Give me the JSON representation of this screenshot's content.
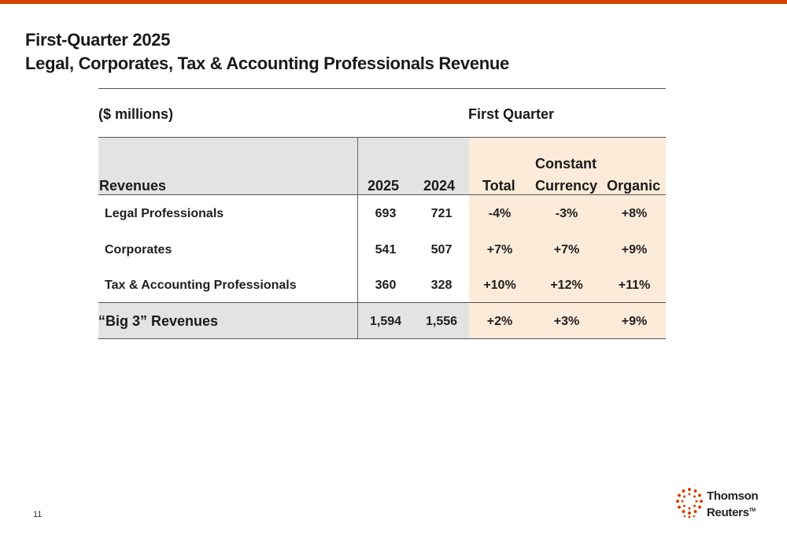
{
  "brand": {
    "accent": "#d64000",
    "peach": "#fdebd9",
    "gray": "#e3e3e3"
  },
  "title": {
    "line1": "First-Quarter 2025",
    "line2": "Legal, Corporates, Tax & Accounting Professionals Revenue"
  },
  "table": {
    "units": "($ millions)",
    "period": "First Quarter",
    "headers": {
      "revenues": "Revenues",
      "y2025": "2025",
      "y2024": "2024",
      "total": "Total",
      "constant": "Constant",
      "currency": "Currency",
      "organic": "Organic"
    },
    "rows": [
      {
        "label": "Legal Professionals",
        "y2025": "693",
        "y2024": "721",
        "total": "-4%",
        "constant": "-3%",
        "organic": "+8%"
      },
      {
        "label": "Corporates",
        "y2025": "541",
        "y2024": "507",
        "total": "+7%",
        "constant": "+7%",
        "organic": "+9%"
      },
      {
        "label": "Tax & Accounting Professionals",
        "y2025": "360",
        "y2024": "328",
        "total": "+10%",
        "constant": "+12%",
        "organic": "+11%"
      }
    ],
    "total_row": {
      "label": "“Big 3” Revenues",
      "y2025": "1,594",
      "y2024": "1,556",
      "total": "+2%",
      "constant": "+3%",
      "organic": "+9%"
    }
  },
  "footer": {
    "page": "11",
    "logo_line1": "Thomson",
    "logo_line2": "Reuters",
    "logo_tm": "TM"
  }
}
